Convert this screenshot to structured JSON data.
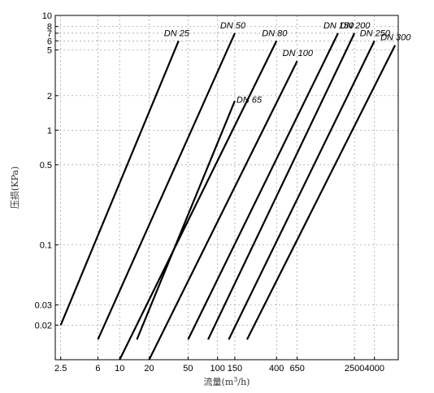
{
  "chart_data": {
    "type": "line",
    "title": "",
    "xlabel": "流量(m³/h)",
    "ylabel": "压损(KPa)",
    "xscale": "log",
    "yscale": "log",
    "xlim": [
      2.2,
      7000
    ],
    "ylim": [
      0.01,
      10
    ],
    "grid": true,
    "x_ticks": [
      {
        "value": 2.5,
        "label": "2.5"
      },
      {
        "value": 6,
        "label": "6"
      },
      {
        "value": 10,
        "label": "10"
      },
      {
        "value": 20,
        "label": "20"
      },
      {
        "value": 50,
        "label": "50"
      },
      {
        "value": 100,
        "label": "100"
      },
      {
        "value": 150,
        "label": "150"
      },
      {
        "value": 400,
        "label": "400"
      },
      {
        "value": 650,
        "label": "650"
      },
      {
        "value": 2500,
        "label": "2500"
      },
      {
        "value": 4000,
        "label": "4000"
      }
    ],
    "y_ticks": [
      {
        "value": 0.02,
        "label": "0.02"
      },
      {
        "value": 0.03,
        "label": "0.03"
      },
      {
        "value": 0.1,
        "label": "0.1"
      },
      {
        "value": 0.5,
        "label": "0.5"
      },
      {
        "value": 1,
        "label": "1"
      },
      {
        "value": 2,
        "label": "2"
      },
      {
        "value": 5,
        "label": "5"
      },
      {
        "value": 6,
        "label": "6"
      },
      {
        "value": 7,
        "label": "7"
      },
      {
        "value": 8,
        "label": "8"
      },
      {
        "value": 10,
        "label": "10"
      }
    ],
    "series": [
      {
        "name": "DN 25",
        "x": [
          2.5,
          40
        ],
        "y": [
          0.02,
          6
        ]
      },
      {
        "name": "DN 50",
        "x": [
          6,
          150
        ],
        "y": [
          0.015,
          7
        ]
      },
      {
        "name": "DN 65",
        "x": [
          15,
          150
        ],
        "y": [
          0.015,
          1.8
        ]
      },
      {
        "name": "DN 80",
        "x": [
          10,
          400
        ],
        "y": [
          0.01,
          6
        ]
      },
      {
        "name": "DN 100",
        "x": [
          20,
          650
        ],
        "y": [
          0.01,
          4
        ]
      },
      {
        "name": "DN 150",
        "x": [
          50,
          1700
        ],
        "y": [
          0.015,
          7
        ]
      },
      {
        "name": "DN 200",
        "x": [
          80,
          2500
        ],
        "y": [
          0.015,
          7
        ]
      },
      {
        "name": "DN 250",
        "x": [
          130,
          4000
        ],
        "y": [
          0.015,
          6
        ]
      },
      {
        "name": "DN 300",
        "x": [
          200,
          6500
        ],
        "y": [
          0.015,
          5.5
        ]
      }
    ]
  }
}
